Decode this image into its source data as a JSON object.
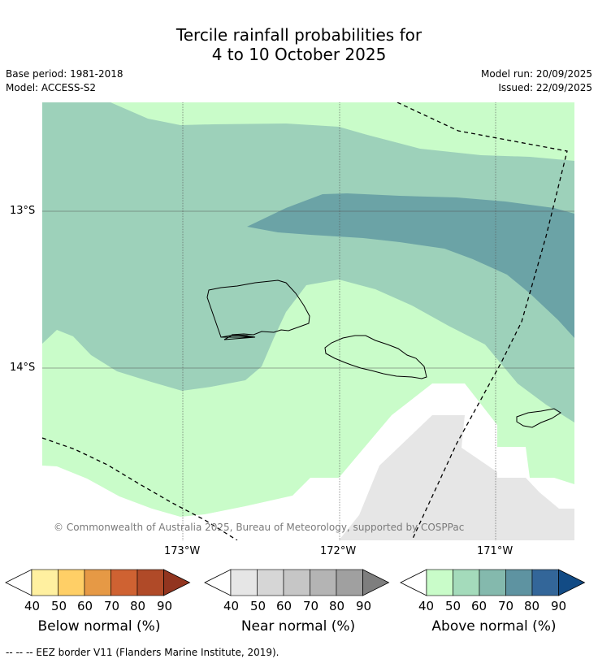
{
  "title_line1": "Tercile rainfall probabilities for",
  "title_line2": "4 to 10 October 2025",
  "base_period": "Base period: 1981-2018",
  "model": "Model: ACCESS-S2",
  "model_run": "Model run: 20/09/2025",
  "issued": "Issued: 22/09/2025",
  "copyright": "© Commonwealth of Australia 2025, Bureau of Meteorology, supported by COSPPac",
  "lat_ticks": [
    "13°S",
    "14°S"
  ],
  "lon_ticks": [
    "173°W",
    "172°W",
    "171°W"
  ],
  "colorbars": [
    {
      "label": "Below normal (%)",
      "ticks": [
        "40",
        "50",
        "60",
        "70",
        "80",
        "90"
      ],
      "colors": [
        "#fff0a0",
        "#ffcf66",
        "#e69945",
        "#cf6232",
        "#b04a28",
        "#92351f"
      ]
    },
    {
      "label": "Near normal (%)",
      "ticks": [
        "40",
        "50",
        "60",
        "70",
        "80",
        "90"
      ],
      "colors": [
        "#e6e6e6",
        "#d6d6d6",
        "#c6c6c6",
        "#b4b4b4",
        "#a0a0a0",
        "#7e7e7e"
      ]
    },
    {
      "label": "Above normal (%)",
      "ticks": [
        "40",
        "50",
        "60",
        "70",
        "80",
        "90"
      ],
      "colors": [
        "#c9fcc9",
        "#a4dbbb",
        "#84b9ad",
        "#5e93a1",
        "#336699",
        "#124b85"
      ]
    }
  ],
  "footnote": "--  --  -- EEZ border V11 (Flanders Marine Institute, 2019).",
  "map_colors": {
    "sea": "#ffffff",
    "above_40": "#c9fcc9",
    "above_50": "#9dd1ba",
    "above_60": "#6ba3a6",
    "near_40": "#e6e6e6"
  }
}
